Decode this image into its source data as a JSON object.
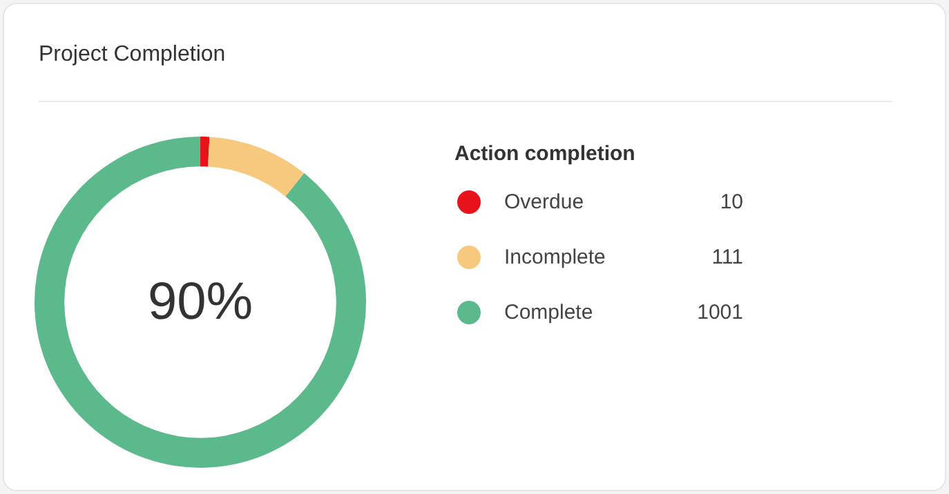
{
  "chart_data": {
    "type": "donut",
    "title": "Project Completion",
    "legend_title": "Action completion",
    "categories": [
      "Overdue",
      "Incomplete",
      "Complete"
    ],
    "values": [
      10,
      111,
      1001
    ],
    "colors": [
      "#e8121a",
      "#f6c97f",
      "#5bb98b"
    ],
    "data_labels": true,
    "legend": "right",
    "annotations": [
      "90%"
    ]
  }
}
